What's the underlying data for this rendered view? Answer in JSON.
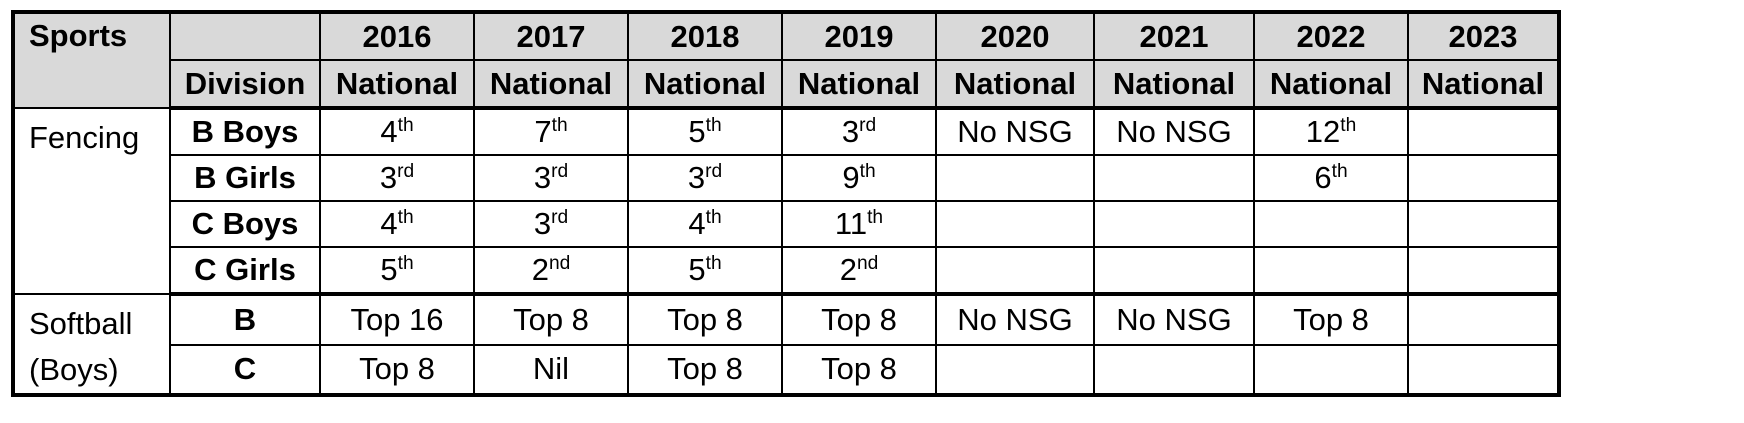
{
  "table": {
    "sports_label": "Sports",
    "division_label": "Division",
    "years": [
      "2016",
      "2017",
      "2018",
      "2019",
      "2020",
      "2021",
      "2022",
      "2023"
    ],
    "level_label": "National",
    "groups": [
      {
        "sport": "Fencing",
        "rows": [
          {
            "division": "B Boys",
            "cells": [
              [
                "4",
                "th"
              ],
              [
                "7",
                "th"
              ],
              [
                "5",
                "th"
              ],
              [
                "3",
                "rd"
              ],
              [
                "No NSG",
                ""
              ],
              [
                "No NSG",
                ""
              ],
              [
                "12",
                "th"
              ],
              [
                "",
                ""
              ]
            ]
          },
          {
            "division": "B Girls",
            "cells": [
              [
                "3",
                "rd"
              ],
              [
                "3",
                "rd"
              ],
              [
                "3",
                "rd"
              ],
              [
                "9",
                "th"
              ],
              [
                "",
                ""
              ],
              [
                "",
                ""
              ],
              [
                "6",
                "th"
              ],
              [
                "",
                ""
              ]
            ]
          },
          {
            "division": "C Boys",
            "cells": [
              [
                "4",
                "th"
              ],
              [
                "3",
                "rd"
              ],
              [
                "4",
                "th"
              ],
              [
                "11",
                "th"
              ],
              [
                "",
                ""
              ],
              [
                "",
                ""
              ],
              [
                "",
                ""
              ],
              [
                "",
                ""
              ]
            ]
          },
          {
            "division": "C Girls",
            "cells": [
              [
                "5",
                "th"
              ],
              [
                "2",
                "nd"
              ],
              [
                "5",
                "th"
              ],
              [
                "2",
                "nd"
              ],
              [
                "",
                ""
              ],
              [
                "",
                ""
              ],
              [
                "",
                ""
              ],
              [
                "",
                ""
              ]
            ]
          }
        ]
      },
      {
        "sport": "Softball (Boys)",
        "rows": [
          {
            "division": "B",
            "cells": [
              [
                "Top 16",
                ""
              ],
              [
                "Top 8",
                ""
              ],
              [
                "Top 8",
                ""
              ],
              [
                "Top 8",
                ""
              ],
              [
                "No NSG",
                ""
              ],
              [
                "No NSG",
                ""
              ],
              [
                "Top 8",
                ""
              ],
              [
                "",
                ""
              ]
            ]
          },
          {
            "division": "C",
            "cells": [
              [
                "Top 8",
                ""
              ],
              [
                "Nil",
                ""
              ],
              [
                "Top 8",
                ""
              ],
              [
                "Top 8",
                ""
              ],
              [
                "",
                ""
              ],
              [
                "",
                ""
              ],
              [
                "",
                ""
              ],
              [
                "",
                ""
              ]
            ]
          }
        ]
      }
    ]
  }
}
